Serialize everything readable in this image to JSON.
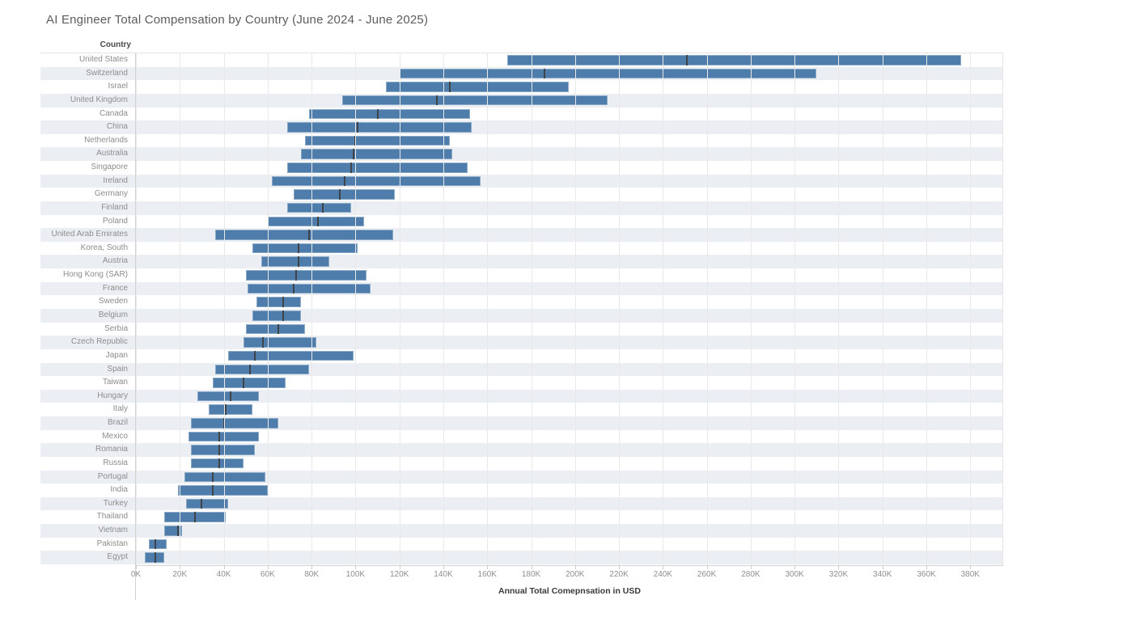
{
  "title": "AI Engineer Total Compensation by Country (June 2024 - June 2025)",
  "column_header": "Country",
  "axis": {
    "xlabel": "Annual Total Comepnsation in USD",
    "tick_labels": [
      "0K",
      "20K",
      "40K",
      "60K",
      "80K",
      "100K",
      "120K",
      "140K",
      "160K",
      "180K",
      "200K",
      "220K",
      "240K",
      "260K",
      "280K",
      "300K",
      "320K",
      "340K",
      "360K",
      "380K"
    ],
    "tick_values_k": [
      0,
      20,
      40,
      60,
      80,
      100,
      120,
      140,
      160,
      180,
      200,
      220,
      240,
      260,
      280,
      300,
      320,
      340,
      360,
      380
    ],
    "domain_k": [
      0,
      395
    ]
  },
  "colors": {
    "bar": "#4e7dab",
    "median_tick": "#3f444b",
    "row_band": "#ebeff3",
    "gridline": "#e9e9e9",
    "axis_line": "#d2d2d2"
  },
  "chart_data": {
    "type": "bar",
    "subtype": "horizontal-range-gantt-with-median-tick",
    "title": "AI Engineer Total Compensation by Country (June 2024 - June 2025)",
    "xlabel": "Annual Total Comepnsation in USD",
    "ylabel": "Country",
    "units": "thousand USD per year",
    "xlim": [
      0,
      395
    ],
    "grid": true,
    "legend": false,
    "rows": [
      {
        "country": "United States",
        "min_k": 169,
        "median_k": 251,
        "max_k": 376
      },
      {
        "country": "Switzerland",
        "min_k": 120,
        "median_k": 186,
        "max_k": 310
      },
      {
        "country": "Israel",
        "min_k": 114,
        "median_k": 143,
        "max_k": 197
      },
      {
        "country": "United Kingdom",
        "min_k": 94,
        "median_k": 137,
        "max_k": 215
      },
      {
        "country": "Canada",
        "min_k": 79,
        "median_k": 110,
        "max_k": 152
      },
      {
        "country": "China",
        "min_k": 69,
        "median_k": 101,
        "max_k": 153
      },
      {
        "country": "Netherlands",
        "min_k": 77,
        "median_k": 100,
        "max_k": 143
      },
      {
        "country": "Australia",
        "min_k": 75,
        "median_k": 99,
        "max_k": 144
      },
      {
        "country": "Singapore",
        "min_k": 69,
        "median_k": 98,
        "max_k": 151
      },
      {
        "country": "Ireland",
        "min_k": 62,
        "median_k": 95,
        "max_k": 157
      },
      {
        "country": "Germany",
        "min_k": 72,
        "median_k": 93,
        "max_k": 118
      },
      {
        "country": "Finland",
        "min_k": 69,
        "median_k": 85,
        "max_k": 98
      },
      {
        "country": "Poland",
        "min_k": 60,
        "median_k": 83,
        "max_k": 104
      },
      {
        "country": "United Arab Emirates",
        "min_k": 36,
        "median_k": 79,
        "max_k": 117
      },
      {
        "country": "Korea, South",
        "min_k": 53,
        "median_k": 74,
        "max_k": 101
      },
      {
        "country": "Austria",
        "min_k": 57,
        "median_k": 74,
        "max_k": 88
      },
      {
        "country": "Hong Kong (SAR)",
        "min_k": 50,
        "median_k": 73,
        "max_k": 105
      },
      {
        "country": "France",
        "min_k": 51,
        "median_k": 72,
        "max_k": 107
      },
      {
        "country": "Sweden",
        "min_k": 55,
        "median_k": 67,
        "max_k": 75
      },
      {
        "country": "Belgium",
        "min_k": 53,
        "median_k": 67,
        "max_k": 75
      },
      {
        "country": "Serbia",
        "min_k": 50,
        "median_k": 65,
        "max_k": 77
      },
      {
        "country": "Czech Republic",
        "min_k": 49,
        "median_k": 58,
        "max_k": 82
      },
      {
        "country": "Japan",
        "min_k": 42,
        "median_k": 54,
        "max_k": 99
      },
      {
        "country": "Spain",
        "min_k": 36,
        "median_k": 52,
        "max_k": 79
      },
      {
        "country": "Taiwan",
        "min_k": 35,
        "median_k": 49,
        "max_k": 68
      },
      {
        "country": "Hungary",
        "min_k": 28,
        "median_k": 43,
        "max_k": 56
      },
      {
        "country": "Italy",
        "min_k": 33,
        "median_k": 41,
        "max_k": 53
      },
      {
        "country": "Brazil",
        "min_k": 25,
        "median_k": 40,
        "max_k": 65
      },
      {
        "country": "Mexico",
        "min_k": 24,
        "median_k": 38,
        "max_k": 56
      },
      {
        "country": "Romania",
        "min_k": 25,
        "median_k": 38,
        "max_k": 54
      },
      {
        "country": "Russia",
        "min_k": 25,
        "median_k": 38,
        "max_k": 49
      },
      {
        "country": "Portugal",
        "min_k": 22,
        "median_k": 35,
        "max_k": 59
      },
      {
        "country": "India",
        "min_k": 19,
        "median_k": 35,
        "max_k": 60
      },
      {
        "country": "Turkey",
        "min_k": 23,
        "median_k": 30,
        "max_k": 42
      },
      {
        "country": "Thailand",
        "min_k": 13,
        "median_k": 27,
        "max_k": 41
      },
      {
        "country": "Vietnam",
        "min_k": 13,
        "median_k": 19,
        "max_k": 21
      },
      {
        "country": "Pakistan",
        "min_k": 6,
        "median_k": 9,
        "max_k": 14
      },
      {
        "country": "Egypt",
        "min_k": 4,
        "median_k": 9,
        "max_k": 13
      }
    ]
  }
}
